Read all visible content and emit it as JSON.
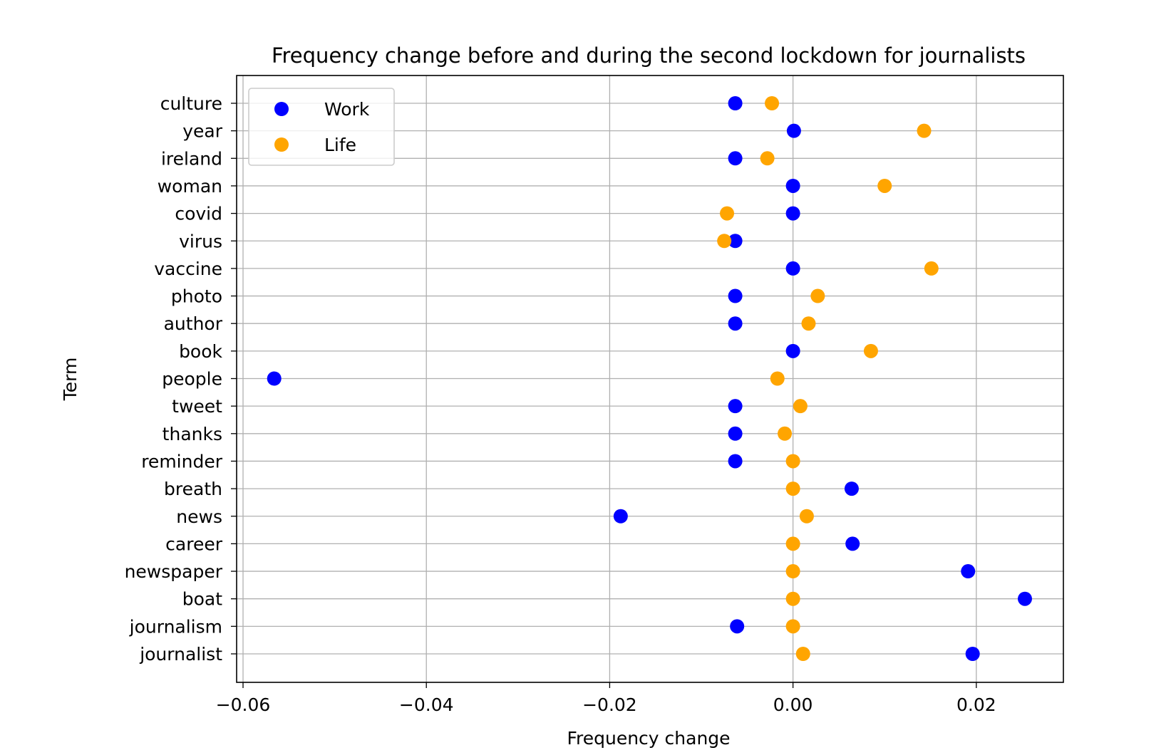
{
  "chart_data": {
    "type": "scatter",
    "title": "Frequency change before and during the second lockdown for journalists",
    "xlabel": "Frequency change",
    "ylabel": "Term",
    "xlim": [
      -0.0607,
      0.0295
    ],
    "x_ticks": [
      -0.06,
      -0.04,
      -0.02,
      0.0,
      0.02
    ],
    "x_tick_labels": [
      "−0.06",
      "−0.04",
      "−0.02",
      "0.00",
      "0.02"
    ],
    "categories": [
      "culture",
      "year",
      "ireland",
      "woman",
      "covid",
      "virus",
      "vaccine",
      "photo",
      "author",
      "book",
      "people",
      "tweet",
      "thanks",
      "reminder",
      "breath",
      "news",
      "career",
      "newspaper",
      "boat",
      "journalism",
      "journalist"
    ],
    "grid": true,
    "legend_position": "top-left",
    "series": [
      {
        "name": "Work",
        "color": "#0000ff",
        "values": [
          -0.0063,
          0.0001,
          -0.0063,
          0.0,
          0.0,
          -0.0063,
          0.0,
          -0.0063,
          -0.0063,
          0.0,
          -0.0566,
          -0.0063,
          -0.0063,
          -0.0063,
          0.0064,
          -0.0188,
          0.0065,
          0.0191,
          0.0253,
          -0.0061,
          0.0196
        ]
      },
      {
        "name": "Life",
        "color": "#ffa500",
        "values": [
          -0.0023,
          0.0143,
          -0.0028,
          0.01,
          -0.0072,
          -0.0075,
          0.0151,
          0.0027,
          0.0017,
          0.0085,
          -0.0017,
          0.0008,
          -0.0009,
          0.0,
          0.0,
          0.0015,
          0.0,
          0.0,
          0.0,
          0.0,
          0.0011
        ]
      }
    ]
  }
}
